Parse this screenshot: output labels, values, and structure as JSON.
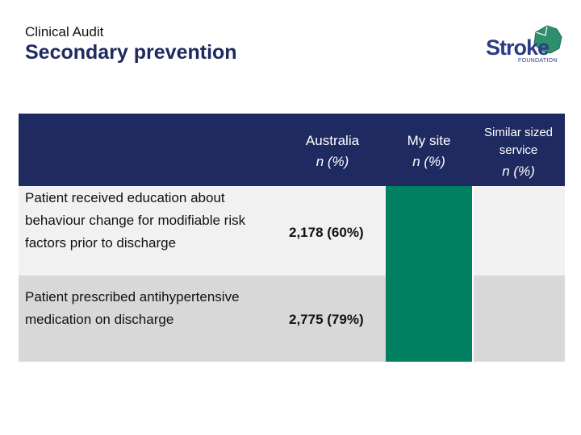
{
  "header": {
    "subtitle": "Clinical Audit",
    "title": "Secondary prevention"
  },
  "logo": {
    "word": "Stroke",
    "sub": "FOUNDATION"
  },
  "table": {
    "columns": [
      {
        "name": "Australia",
        "unit": "n (%)"
      },
      {
        "name": "My site",
        "unit": "n (%)"
      },
      {
        "name": "Similar sized service",
        "unit": "n (%)"
      }
    ],
    "rows": [
      {
        "label": "Patient received education about behaviour change for modifiable risk factors prior to discharge",
        "australia": "2,178 (60%)",
        "my_site": "",
        "similar": ""
      },
      {
        "label": "Patient prescribed antihypertensive medication on discharge",
        "australia": "2,775 (79%)",
        "my_site": "",
        "similar": ""
      }
    ]
  },
  "colors": {
    "header_bg": "#1f2a60",
    "my_site_bg": "#008060",
    "row1_bg": "#f1f1f1",
    "row2_bg": "#d8d8d8",
    "brand": "#2c3c86"
  }
}
